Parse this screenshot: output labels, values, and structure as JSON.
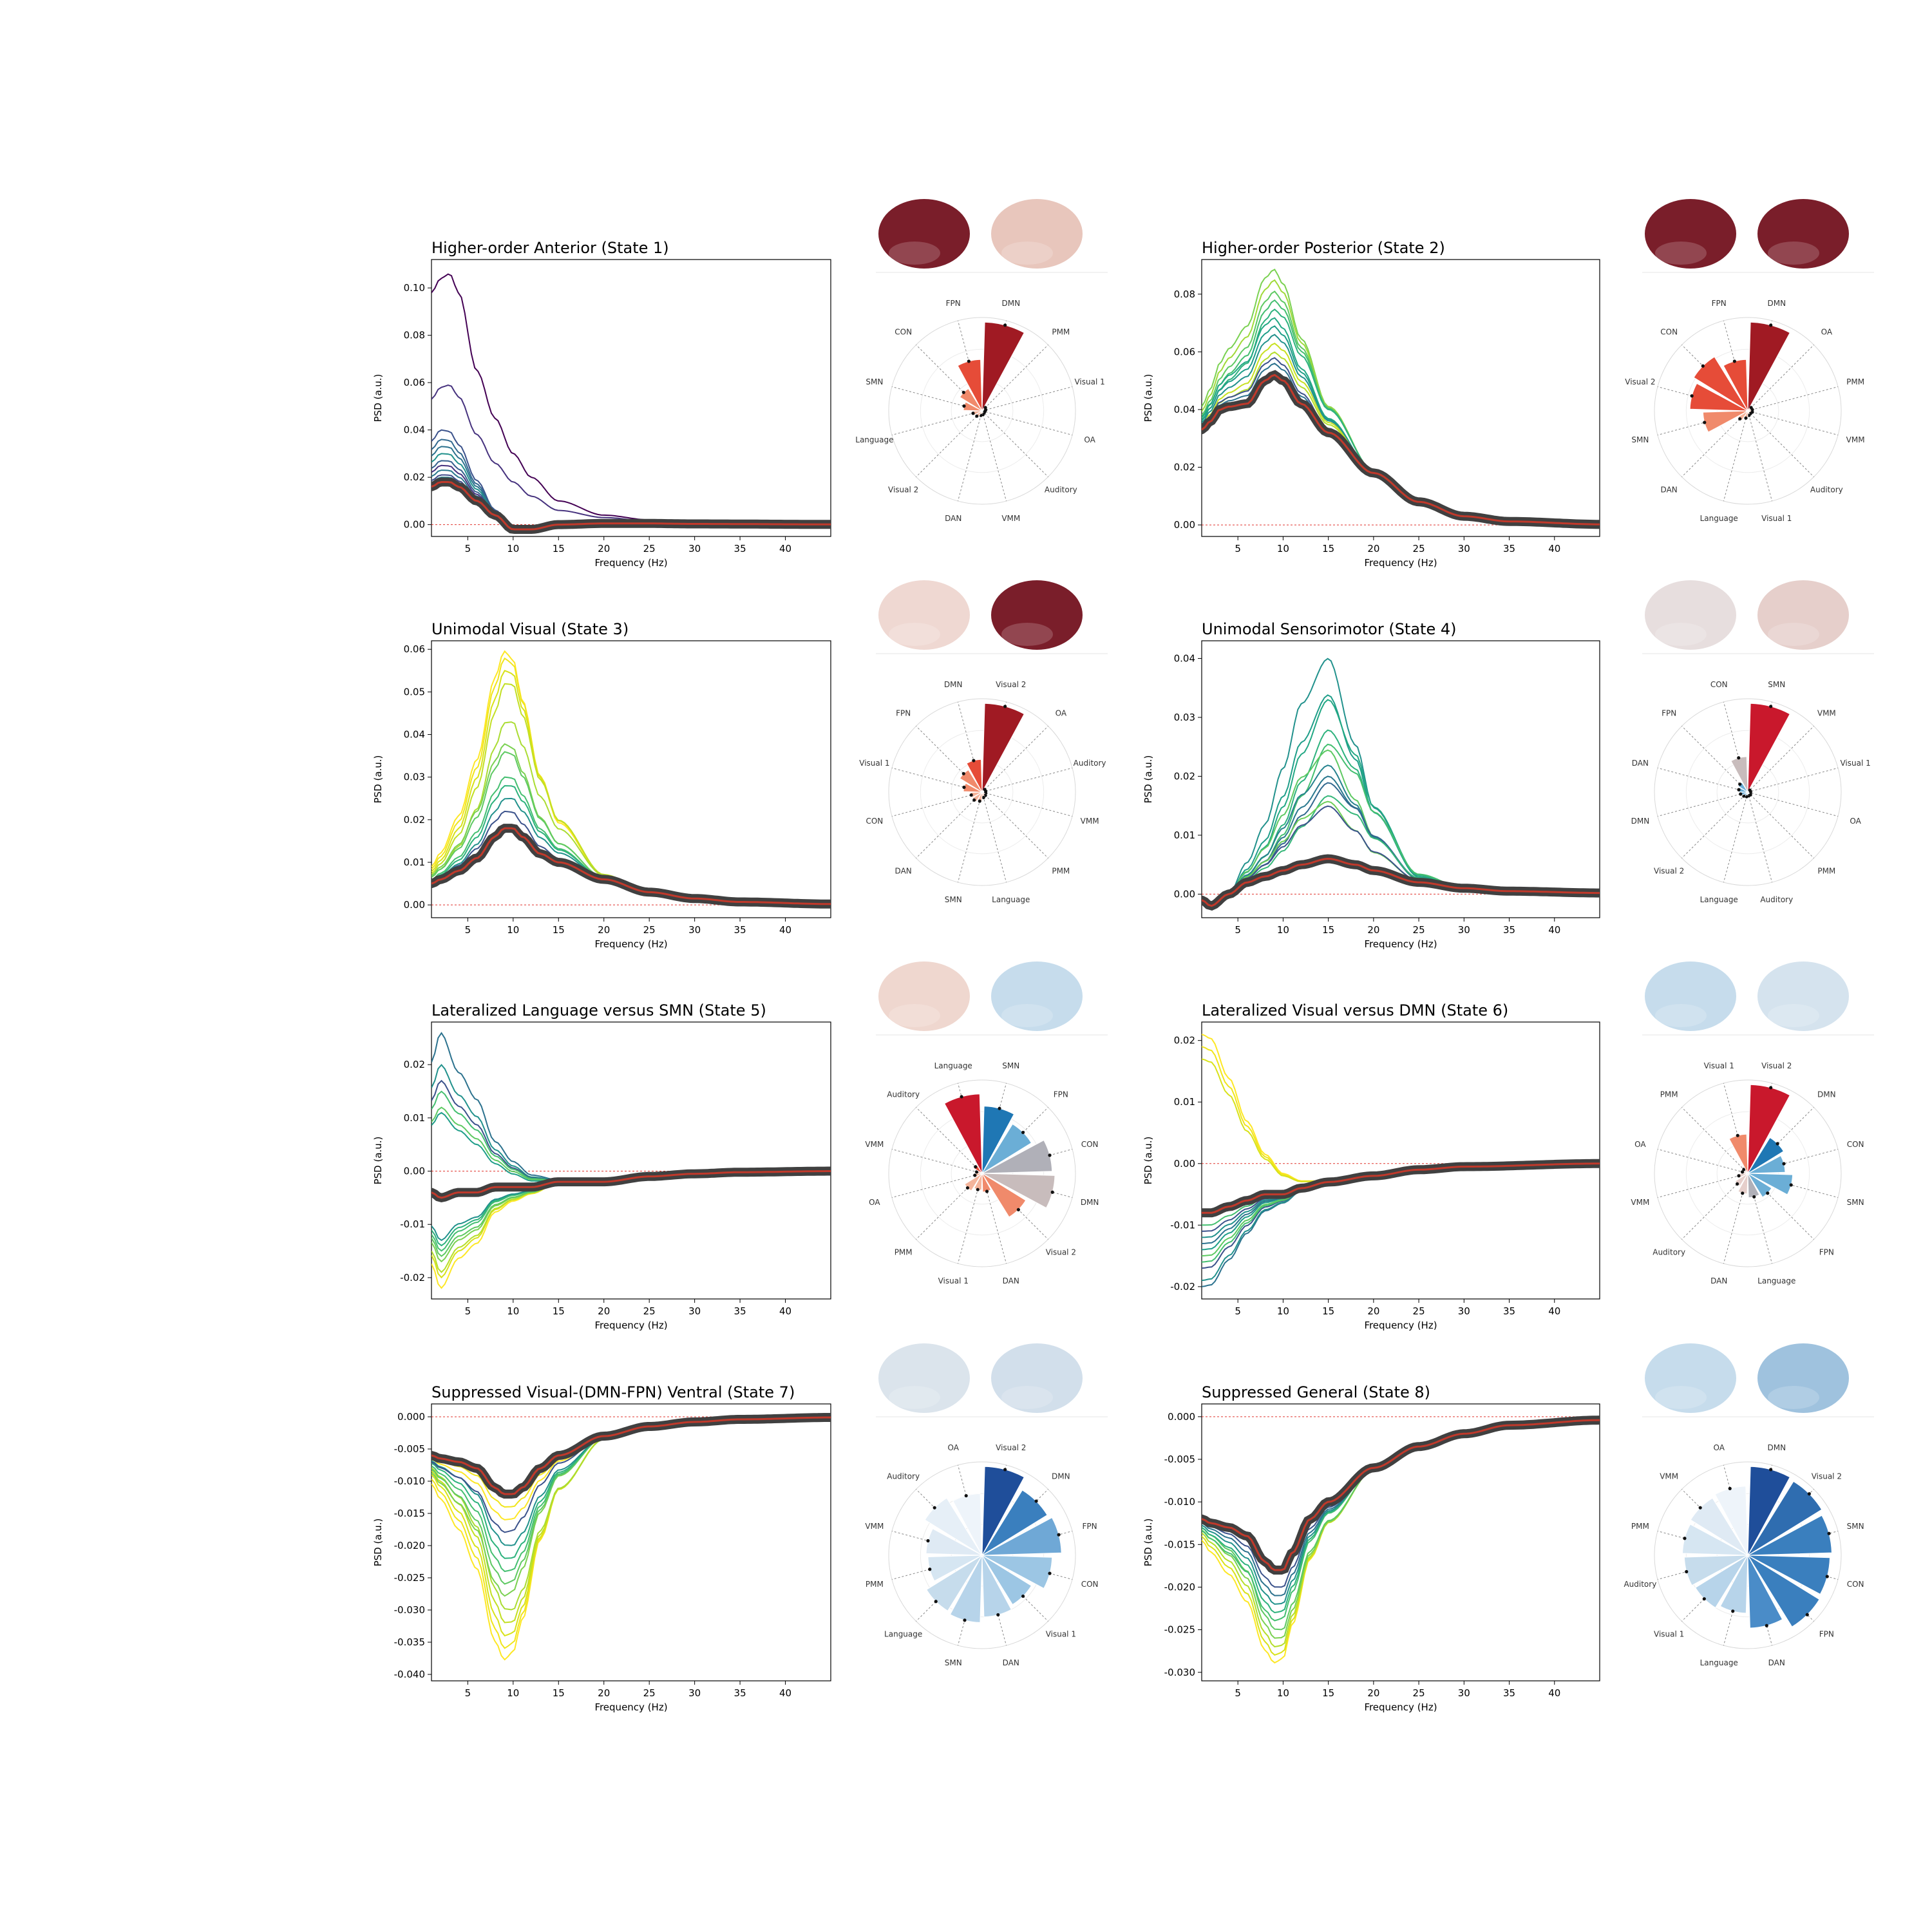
{
  "figure": {
    "x_axis_label": "Frequency (Hz)",
    "y_axis_label": "PSD (a.u.)",
    "x_ticks": [
      5,
      10,
      15,
      20,
      25,
      30,
      35,
      40
    ],
    "x_range": [
      1,
      45
    ]
  },
  "chart_data": [
    {
      "type": "line",
      "title": "Higher-order Anterior (State 1)",
      "ylim": [
        -0.005,
        0.112
      ],
      "y_ticks": [
        "0.00",
        "0.02",
        "0.04",
        "0.06",
        "0.08",
        "0.10"
      ],
      "y_tick_values": [
        0.0,
        0.02,
        0.04,
        0.06,
        0.08,
        0.1
      ],
      "zero_line": true,
      "line_palette": [
        "#440154",
        "#3b528b",
        "#31688e",
        "#2c728e",
        "#21918c",
        "#2a788e",
        "#35608d",
        "#46327e"
      ],
      "series": [
        {
          "role": "outlier",
          "x": [
            1,
            2,
            3,
            4,
            6,
            8,
            10,
            12,
            15,
            20,
            25,
            30,
            35,
            45
          ],
          "y": [
            0.098,
            0.104,
            0.106,
            0.098,
            0.065,
            0.045,
            0.03,
            0.02,
            0.01,
            0.004,
            0.002,
            0.001,
            0.0005,
            0.0002
          ],
          "color": "#440154"
        },
        {
          "role": "outlier",
          "x": [
            1,
            2,
            3,
            4,
            6,
            8,
            10,
            12,
            15,
            20,
            25,
            30,
            35,
            45
          ],
          "y": [
            0.053,
            0.058,
            0.059,
            0.054,
            0.038,
            0.026,
            0.018,
            0.012,
            0.006,
            0.003,
            0.0015,
            0.0008,
            0.0004,
            0.0002
          ],
          "color": "#46327e"
        },
        {
          "role": "group",
          "peak": [
            0.04,
            0.036,
            0.033,
            0.03,
            0.027,
            0.025,
            0.023,
            0.021,
            0.02,
            0.019
          ],
          "color": "#31688e"
        },
        {
          "role": "mean",
          "x": [
            1,
            2,
            3,
            4,
            6,
            8,
            10,
            12,
            15,
            20,
            25,
            30,
            45
          ],
          "y": [
            0.016,
            0.018,
            0.018,
            0.016,
            0.01,
            0.004,
            -0.002,
            -0.002,
            0.0,
            0.0005,
            0.0005,
            0.0003,
            0.0001
          ],
          "color": "#c0392b"
        }
      ],
      "polar": {
        "labels": [
          "DMN",
          "PMM",
          "Visual 1",
          "OA",
          "Auditory",
          "VMM",
          "DAN",
          "Visual 2",
          "Language",
          "SMN",
          "CON",
          "FPN"
        ],
        "values": [
          0.95,
          0.05,
          0.04,
          0.03,
          0.03,
          0.04,
          0.05,
          0.08,
          0.1,
          0.2,
          0.28,
          0.55
        ],
        "colors": [
          "#a01a23",
          "#f4b49b",
          "#f4b49b",
          "#f4b49b",
          "#f4b49b",
          "#f4b49b",
          "#f4b49b",
          "#f4b49b",
          "#f4b49b",
          "#f08a6b",
          "#f08a6b",
          "#e64c38"
        ]
      },
      "brain_colors": [
        "#7a1e2a",
        "#e8c6bc"
      ]
    },
    {
      "type": "line",
      "title": "Higher-order Posterior (State 2)",
      "ylim": [
        -0.004,
        0.092
      ],
      "y_ticks": [
        "0.00",
        "0.02",
        "0.04",
        "0.06",
        "0.08"
      ],
      "y_tick_values": [
        0.0,
        0.02,
        0.04,
        0.06,
        0.08
      ],
      "zero_line": true,
      "series": [
        {
          "role": "group",
          "peak": [
            0.089,
            0.085,
            0.081,
            0.078,
            0.075,
            0.072,
            0.069,
            0.066,
            0.063,
            0.06,
            0.058,
            0.056
          ],
          "color": "#7ad151"
        },
        {
          "role": "mean",
          "x": [
            1,
            2,
            3,
            4,
            6,
            8,
            9,
            10,
            12,
            15,
            20,
            25,
            30,
            35,
            45
          ],
          "y": [
            0.033,
            0.036,
            0.04,
            0.041,
            0.042,
            0.05,
            0.052,
            0.05,
            0.042,
            0.032,
            0.018,
            0.008,
            0.003,
            0.0012,
            0.0002
          ],
          "color": "#c0392b"
        }
      ],
      "polar": {
        "labels": [
          "DMN",
          "OA",
          "PMM",
          "VMM",
          "Auditory",
          "Visual 1",
          "Language",
          "DAN",
          "SMN",
          "Visual 2",
          "CON",
          "FPN"
        ],
        "values": [
          0.95,
          0.05,
          0.05,
          0.05,
          0.04,
          0.05,
          0.08,
          0.12,
          0.48,
          0.62,
          0.68,
          0.55
        ],
        "colors": [
          "#a01a23",
          "#f4b49b",
          "#f4b49b",
          "#f4b49b",
          "#f4b49b",
          "#f4b49b",
          "#f4b49b",
          "#f4b49b",
          "#f08a6b",
          "#e64c38",
          "#e64c38",
          "#e64c38"
        ]
      },
      "brain_colors": [
        "#7a1e2a",
        "#7a1e2a"
      ]
    },
    {
      "type": "line",
      "title": "Unimodal Visual (State 3)",
      "ylim": [
        -0.003,
        0.062
      ],
      "y_ticks": [
        "0.00",
        "0.01",
        "0.02",
        "0.03",
        "0.04",
        "0.05",
        "0.06"
      ],
      "y_tick_values": [
        0.0,
        0.01,
        0.02,
        0.03,
        0.04,
        0.05,
        0.06
      ],
      "zero_line": true,
      "series": [
        {
          "role": "group",
          "peak": [
            0.06,
            0.058,
            0.055,
            0.052,
            0.043,
            0.038,
            0.036,
            0.03,
            0.028,
            0.025,
            0.022
          ],
          "color": "#fde725"
        },
        {
          "role": "mean",
          "x": [
            1,
            2,
            4,
            6,
            8,
            9,
            10,
            11,
            13,
            15,
            20,
            25,
            30,
            35,
            45
          ],
          "y": [
            0.005,
            0.006,
            0.008,
            0.011,
            0.016,
            0.018,
            0.018,
            0.016,
            0.012,
            0.01,
            0.006,
            0.003,
            0.0015,
            0.0007,
            0.0002
          ],
          "color": "#c0392b"
        }
      ],
      "polar": {
        "labels": [
          "Visual 2",
          "OA",
          "Auditory",
          "VMM",
          "PMM",
          "Language",
          "SMN",
          "DAN",
          "CON",
          "Visual 1",
          "FPN",
          "DMN"
        ],
        "values": [
          0.95,
          0.04,
          0.04,
          0.04,
          0.05,
          0.06,
          0.1,
          0.12,
          0.12,
          0.2,
          0.28,
          0.35
        ],
        "colors": [
          "#a01a23",
          "#f4b49b",
          "#f4b49b",
          "#f4b49b",
          "#f4b49b",
          "#f4b49b",
          "#f4b49b",
          "#f4b49b",
          "#f4b49b",
          "#f08a6b",
          "#f08a6b",
          "#e64c38"
        ]
      },
      "brain_colors": [
        "#efd8d2",
        "#7a1e2a"
      ]
    },
    {
      "type": "line",
      "title": "Unimodal Sensorimotor (State 4)",
      "ylim": [
        -0.004,
        0.043
      ],
      "y_ticks": [
        "0.00",
        "0.01",
        "0.02",
        "0.03",
        "0.04"
      ],
      "y_tick_values": [
        0.0,
        0.01,
        0.02,
        0.03,
        0.04
      ],
      "zero_line": true,
      "series": [
        {
          "role": "group",
          "peak": [
            0.041,
            0.034,
            0.033,
            0.028,
            0.026,
            0.025,
            0.022,
            0.02,
            0.019,
            0.017,
            0.016,
            0.015
          ],
          "color": "#21918c"
        },
        {
          "role": "mean",
          "x": [
            1,
            2,
            4,
            6,
            8,
            10,
            12,
            15,
            18,
            20,
            25,
            30,
            35,
            45
          ],
          "y": [
            -0.001,
            -0.002,
            0.0,
            0.002,
            0.003,
            0.004,
            0.005,
            0.006,
            0.005,
            0.004,
            0.002,
            0.001,
            0.0005,
            0.0002
          ],
          "color": "#c0392b"
        }
      ],
      "polar": {
        "labels": [
          "SMN",
          "VMM",
          "Visual 1",
          "OA",
          "PMM",
          "Auditory",
          "Language",
          "Visual 2",
          "DMN",
          "DAN",
          "FPN",
          "CON"
        ],
        "values": [
          0.95,
          0.03,
          0.03,
          0.03,
          0.04,
          0.04,
          0.05,
          0.06,
          0.08,
          0.1,
          0.12,
          0.38
        ],
        "colors": [
          "#c9182c",
          "#b7d4ea",
          "#b7d4ea",
          "#b7d4ea",
          "#b7d4ea",
          "#b7d4ea",
          "#b7d4ea",
          "#6baed6",
          "#6baed6",
          "#6baed6",
          "#6baed6",
          "#c8bcbc"
        ]
      },
      "brain_colors": [
        "#e7dede",
        "#e6cfcb"
      ]
    },
    {
      "type": "line",
      "title": "Lateralized Language versus SMN (State 5)",
      "ylim": [
        -0.024,
        0.028
      ],
      "y_ticks": [
        "-0.02",
        "-0.01",
        "0.00",
        "0.01",
        "0.02"
      ],
      "y_tick_values": [
        -0.02,
        -0.01,
        0.0,
        0.01,
        0.02
      ],
      "zero_line": true,
      "series": [
        {
          "role": "group_pos",
          "peak": [
            0.026,
            0.02,
            0.017,
            0.015,
            0.012,
            0.011
          ],
          "color": "#2c728e"
        },
        {
          "role": "group_neg",
          "peak": [
            -0.022,
            -0.02,
            -0.019,
            -0.017,
            -0.016,
            -0.015,
            -0.014,
            -0.013
          ],
          "color": "#b5de2b"
        },
        {
          "role": "mean",
          "x": [
            1,
            2,
            4,
            6,
            8,
            10,
            12,
            15,
            20,
            25,
            30,
            35,
            45
          ],
          "y": [
            -0.004,
            -0.005,
            -0.004,
            -0.004,
            -0.003,
            -0.003,
            -0.003,
            -0.002,
            -0.002,
            -0.001,
            -0.0005,
            -0.0002,
            0.0
          ],
          "color": "#c0392b"
        }
      ],
      "polar": {
        "labels": [
          "SMN",
          "FPN",
          "CON",
          "DMN",
          "Visual 2",
          "DAN",
          "Visual 1",
          "PMM",
          "OA",
          "VMM",
          "Auditory",
          "Language"
        ],
        "values": [
          0.72,
          0.62,
          0.75,
          0.78,
          0.55,
          0.2,
          0.18,
          0.22,
          0.08,
          0.06,
          0.1,
          0.85
        ],
        "colors": [
          "#1f77b4",
          "#6baed6",
          "#b0b0b8",
          "#c8bcbc",
          "#f08a6b",
          "#f08a6b",
          "#f4b49b",
          "#f4b49b",
          "#f4b49b",
          "#f4b49b",
          "#e64c38",
          "#c9182c"
        ]
      },
      "brain_colors": [
        "#efd7cf",
        "#c6dcec"
      ]
    },
    {
      "type": "line",
      "title": "Lateralized Visual versus DMN (State 6)",
      "ylim": [
        -0.022,
        0.023
      ],
      "y_ticks": [
        "-0.02",
        "-0.01",
        "0.00",
        "0.01",
        "0.02"
      ],
      "y_tick_values": [
        -0.02,
        -0.01,
        0.0,
        0.01,
        0.02
      ],
      "zero_line": true,
      "series": [
        {
          "role": "group_pos",
          "peak": [
            0.021,
            0.019,
            0.017
          ],
          "color": "#fde725"
        },
        {
          "role": "group_neg",
          "peak": [
            -0.02,
            -0.019,
            -0.017,
            -0.016,
            -0.015,
            -0.014,
            -0.013,
            -0.012,
            -0.011,
            -0.01
          ],
          "color": "#2c728e"
        },
        {
          "role": "mean",
          "x": [
            1,
            2,
            4,
            6,
            8,
            10,
            12,
            15,
            20,
            25,
            30,
            45
          ],
          "y": [
            -0.008,
            -0.008,
            -0.007,
            -0.006,
            -0.005,
            -0.005,
            -0.004,
            -0.003,
            -0.002,
            -0.001,
            -0.0005,
            0.0
          ],
          "color": "#c0392b"
        }
      ],
      "polar": {
        "labels": [
          "Visual 2",
          "DMN",
          "CON",
          "SMN",
          "FPN",
          "Language",
          "DAN",
          "Auditory",
          "VMM",
          "OA",
          "PMM",
          "Visual 1"
        ],
        "values": [
          0.95,
          0.45,
          0.4,
          0.48,
          0.3,
          0.26,
          0.22,
          0.16,
          0.1,
          0.06,
          0.06,
          0.42
        ],
        "colors": [
          "#c9182c",
          "#1f77b4",
          "#6baed6",
          "#6baed6",
          "#6baed6",
          "#b0b0b8",
          "#e6cfcb",
          "#e6cfcb",
          "#e6cfcb",
          "#e6cfcb",
          "#e6cfcb",
          "#f08a6b"
        ]
      },
      "brain_colors": [
        "#c6dcec",
        "#d5e3ee"
      ]
    },
    {
      "type": "line",
      "title": "Suppressed Visual-(DMN-FPN) Ventral (State 7)",
      "ylim": [
        -0.041,
        0.002
      ],
      "y_ticks": [
        "-0.040",
        "-0.035",
        "-0.030",
        "-0.025",
        "-0.020",
        "-0.015",
        "-0.010",
        "-0.005",
        "0.000"
      ],
      "y_tick_values": [
        -0.04,
        -0.035,
        -0.03,
        -0.025,
        -0.02,
        -0.015,
        -0.01,
        -0.005,
        0.0
      ],
      "zero_line": true,
      "series": [
        {
          "role": "group_neg",
          "peak": [
            -0.038,
            -0.036,
            -0.034,
            -0.032,
            -0.03,
            -0.028,
            -0.026,
            -0.024,
            -0.022,
            -0.02,
            -0.018,
            -0.016,
            -0.014
          ],
          "color": "#fde725"
        },
        {
          "role": "mean",
          "x": [
            1,
            2,
            4,
            6,
            8,
            9,
            10,
            11,
            13,
            15,
            20,
            25,
            30,
            35,
            45
          ],
          "y": [
            -0.006,
            -0.0065,
            -0.007,
            -0.008,
            -0.011,
            -0.012,
            -0.012,
            -0.011,
            -0.008,
            -0.006,
            -0.003,
            -0.0015,
            -0.0008,
            -0.0004,
            -0.0001
          ],
          "color": "#c0392b"
        }
      ],
      "polar": {
        "labels": [
          "Visual 2",
          "DMN",
          "FPN",
          "CON",
          "Visual 1",
          "DAN",
          "SMN",
          "Language",
          "PMM",
          "VMM",
          "Auditory",
          "OA"
        ],
        "values": [
          0.95,
          0.82,
          0.85,
          0.75,
          0.62,
          0.66,
          0.72,
          0.7,
          0.58,
          0.6,
          0.72,
          0.66
        ],
        "colors": [
          "#1f4e9a",
          "#3a7fbe",
          "#6fa8d6",
          "#9cc6e4",
          "#9cc6e4",
          "#b7d4ea",
          "#b7d4ea",
          "#c6dcec",
          "#d6e6f2",
          "#dfeaf4",
          "#e6eff7",
          "#eef4fa"
        ]
      },
      "brain_colors": [
        "#dbe4ec",
        "#d2dfeb"
      ]
    },
    {
      "type": "line",
      "title": "Suppressed General (State 8)",
      "ylim": [
        -0.031,
        0.0015
      ],
      "y_ticks": [
        "-0.030",
        "-0.025",
        "-0.020",
        "-0.015",
        "-0.010",
        "-0.005",
        "0.000"
      ],
      "y_tick_values": [
        -0.03,
        -0.025,
        -0.02,
        -0.015,
        -0.01,
        -0.005,
        0.0
      ],
      "zero_line": true,
      "series": [
        {
          "role": "group_neg",
          "peak": [
            -0.029,
            -0.028,
            -0.027,
            -0.026,
            -0.025,
            -0.024,
            -0.023,
            -0.022,
            -0.021,
            -0.02
          ],
          "color": "#b5de2b"
        },
        {
          "role": "mean",
          "x": [
            1,
            2,
            4,
            6,
            8,
            9,
            10,
            11,
            13,
            15,
            20,
            25,
            30,
            35,
            45
          ],
          "y": [
            -0.012,
            -0.0125,
            -0.013,
            -0.014,
            -0.017,
            -0.018,
            -0.018,
            -0.016,
            -0.012,
            -0.01,
            -0.006,
            -0.0035,
            -0.002,
            -0.001,
            -0.0004
          ],
          "color": "#c0392b"
        }
      ],
      "polar": {
        "labels": [
          "DMN",
          "Visual 2",
          "SMN",
          "CON",
          "FPN",
          "DAN",
          "Language",
          "Visual 1",
          "Auditory",
          "PMM",
          "VMM",
          "OA"
        ],
        "values": [
          0.95,
          0.93,
          0.9,
          0.88,
          0.9,
          0.78,
          0.62,
          0.66,
          0.68,
          0.7,
          0.72,
          0.74
        ],
        "colors": [
          "#1f4e9a",
          "#2f6db0",
          "#3a7fbe",
          "#3a7fbe",
          "#3a7fbe",
          "#4a8cc8",
          "#b7d4ea",
          "#b7d4ea",
          "#c6dcec",
          "#d6e6f2",
          "#dfeaf4",
          "#eef4fa"
        ]
      },
      "brain_colors": [
        "#c6dcec",
        "#9fc2de"
      ]
    }
  ]
}
